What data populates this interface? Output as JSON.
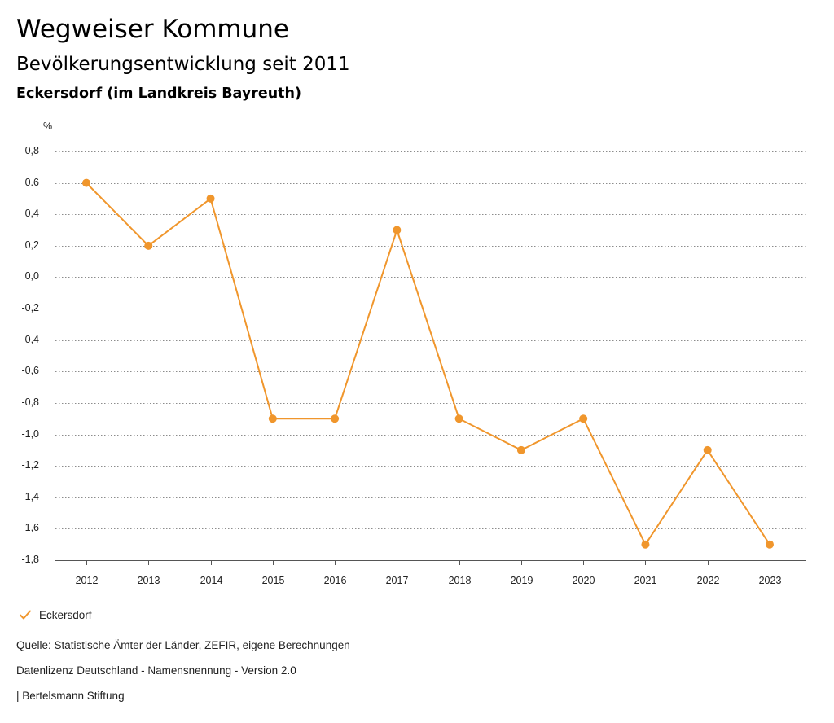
{
  "header": {
    "title": "Wegweiser Kommune",
    "subtitle": "Bevölkerungsentwicklung seit 2011",
    "region": "Eckersdorf (im Landkreis Bayreuth)"
  },
  "chart_data": {
    "type": "line",
    "title": "Bevölkerungsentwicklung seit 2011",
    "ylabel": "%",
    "xlabel": "",
    "categories": [
      "2012",
      "2013",
      "2014",
      "2015",
      "2016",
      "2017",
      "2018",
      "2019",
      "2020",
      "2021",
      "2022",
      "2023"
    ],
    "series": [
      {
        "name": "Eckersdorf",
        "color": "#F0962C",
        "values": [
          0.6,
          0.2,
          0.5,
          -0.9,
          -0.9,
          0.3,
          -0.9,
          -1.1,
          -0.9,
          -1.7,
          -1.1,
          -1.7
        ]
      }
    ],
    "ylim": [
      -1.8,
      0.8
    ],
    "yticks": [
      0.8,
      0.6,
      0.4,
      0.2,
      0.0,
      -0.2,
      -0.4,
      -0.6,
      -0.8,
      -1.0,
      -1.2,
      -1.4,
      -1.6,
      -1.8
    ],
    "ytick_labels": [
      "0,8",
      "0.6",
      "0,4",
      "0,2",
      "0,0",
      "-0,2",
      "-0,4",
      "-0,6",
      "-0,8",
      "-1,0",
      "-1,2",
      "-1,4",
      "-1,6",
      "-1,8"
    ],
    "grid": true,
    "legend": "bottom-left"
  },
  "legend": {
    "label": "Eckersdorf",
    "icon": "check-icon"
  },
  "footer": {
    "source": "Quelle: Statistische Ämter der Länder, ZEFIR, eigene Berechnungen",
    "license": "Datenlizenz Deutschland - Namensnennung - Version 2.0",
    "org": "| Bertelsmann Stiftung"
  }
}
